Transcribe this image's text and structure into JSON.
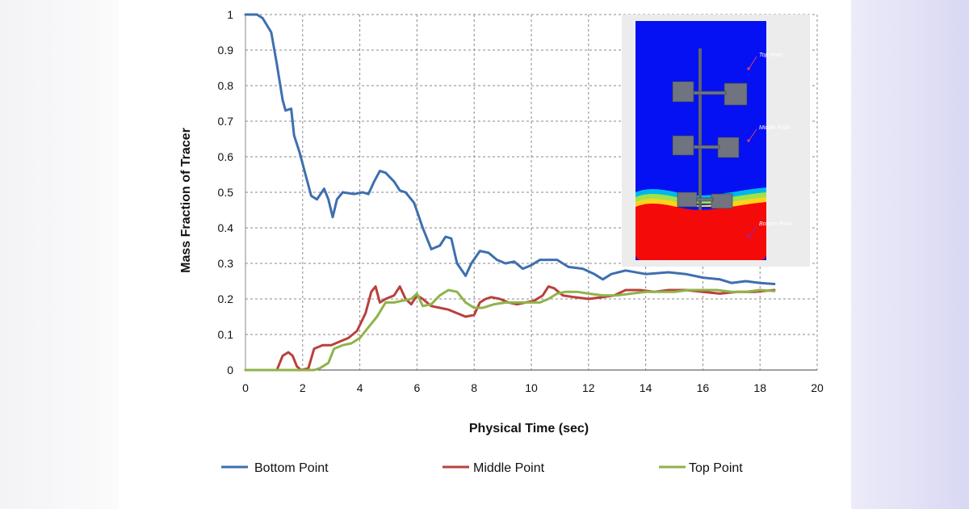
{
  "chart_data": {
    "type": "line",
    "title": "",
    "xlabel": "Physical Time (sec)",
    "ylabel": "Mass Fraction of Tracer",
    "xlim": [
      0,
      20
    ],
    "ylim": [
      0,
      1
    ],
    "x_ticks": [
      0,
      2,
      4,
      6,
      8,
      10,
      12,
      14,
      16,
      18,
      20
    ],
    "y_ticks": [
      0,
      0.1,
      0.2,
      0.3,
      0.4,
      0.5,
      0.6,
      0.7,
      0.8,
      0.9,
      1
    ],
    "grid": true,
    "legend_position": "bottom",
    "series": [
      {
        "name": "Bottom Point",
        "color": "#3e6faf",
        "points": [
          [
            0,
            1
          ],
          [
            0.4,
            1
          ],
          [
            0.6,
            0.99
          ],
          [
            0.9,
            0.95
          ],
          [
            1.1,
            0.86
          ],
          [
            1.3,
            0.76
          ],
          [
            1.4,
            0.73
          ],
          [
            1.6,
            0.735
          ],
          [
            1.7,
            0.66
          ],
          [
            1.9,
            0.61
          ],
          [
            2.1,
            0.55
          ],
          [
            2.3,
            0.49
          ],
          [
            2.5,
            0.48
          ],
          [
            2.75,
            0.51
          ],
          [
            2.9,
            0.48
          ],
          [
            3.05,
            0.43
          ],
          [
            3.2,
            0.48
          ],
          [
            3.4,
            0.5
          ],
          [
            3.8,
            0.495
          ],
          [
            4.1,
            0.5
          ],
          [
            4.3,
            0.495
          ],
          [
            4.5,
            0.53
          ],
          [
            4.7,
            0.56
          ],
          [
            4.9,
            0.555
          ],
          [
            5.2,
            0.53
          ],
          [
            5.4,
            0.505
          ],
          [
            5.6,
            0.5
          ],
          [
            5.9,
            0.47
          ],
          [
            6.2,
            0.4
          ],
          [
            6.5,
            0.34
          ],
          [
            6.8,
            0.35
          ],
          [
            7.0,
            0.375
          ],
          [
            7.2,
            0.37
          ],
          [
            7.4,
            0.3
          ],
          [
            7.7,
            0.265
          ],
          [
            7.9,
            0.3
          ],
          [
            8.2,
            0.335
          ],
          [
            8.5,
            0.33
          ],
          [
            8.8,
            0.31
          ],
          [
            9.1,
            0.3
          ],
          [
            9.4,
            0.305
          ],
          [
            9.7,
            0.285
          ],
          [
            10.0,
            0.295
          ],
          [
            10.3,
            0.31
          ],
          [
            10.9,
            0.31
          ],
          [
            11.3,
            0.29
          ],
          [
            11.8,
            0.285
          ],
          [
            12.2,
            0.27
          ],
          [
            12.5,
            0.255
          ],
          [
            12.8,
            0.27
          ],
          [
            13.3,
            0.28
          ],
          [
            14.0,
            0.27
          ],
          [
            14.8,
            0.275
          ],
          [
            15.4,
            0.27
          ],
          [
            16.0,
            0.26
          ],
          [
            16.6,
            0.255
          ],
          [
            17.0,
            0.245
          ],
          [
            17.5,
            0.25
          ],
          [
            18.0,
            0.245
          ],
          [
            18.5,
            0.242
          ]
        ]
      },
      {
        "name": "Middle Point",
        "color": "#b9403c",
        "points": [
          [
            0,
            0
          ],
          [
            1.1,
            0
          ],
          [
            1.3,
            0.04
          ],
          [
            1.5,
            0.05
          ],
          [
            1.65,
            0.04
          ],
          [
            1.8,
            0.01
          ],
          [
            1.95,
            0
          ],
          [
            2.2,
            0.005
          ],
          [
            2.4,
            0.06
          ],
          [
            2.7,
            0.07
          ],
          [
            3.0,
            0.07
          ],
          [
            3.3,
            0.08
          ],
          [
            3.6,
            0.09
          ],
          [
            3.9,
            0.11
          ],
          [
            4.2,
            0.16
          ],
          [
            4.4,
            0.22
          ],
          [
            4.55,
            0.235
          ],
          [
            4.7,
            0.19
          ],
          [
            4.9,
            0.2
          ],
          [
            5.2,
            0.21
          ],
          [
            5.4,
            0.235
          ],
          [
            5.6,
            0.2
          ],
          [
            5.8,
            0.185
          ],
          [
            6.0,
            0.21
          ],
          [
            6.2,
            0.2
          ],
          [
            6.5,
            0.18
          ],
          [
            6.8,
            0.175
          ],
          [
            7.1,
            0.17
          ],
          [
            7.4,
            0.16
          ],
          [
            7.7,
            0.15
          ],
          [
            8.0,
            0.155
          ],
          [
            8.2,
            0.19
          ],
          [
            8.4,
            0.2
          ],
          [
            8.6,
            0.205
          ],
          [
            8.9,
            0.2
          ],
          [
            9.2,
            0.19
          ],
          [
            9.5,
            0.185
          ],
          [
            9.8,
            0.19
          ],
          [
            10.1,
            0.195
          ],
          [
            10.4,
            0.21
          ],
          [
            10.6,
            0.235
          ],
          [
            10.8,
            0.23
          ],
          [
            11.1,
            0.21
          ],
          [
            11.5,
            0.205
          ],
          [
            12.0,
            0.2
          ],
          [
            12.5,
            0.205
          ],
          [
            12.9,
            0.21
          ],
          [
            13.3,
            0.225
          ],
          [
            13.8,
            0.225
          ],
          [
            14.3,
            0.22
          ],
          [
            14.8,
            0.225
          ],
          [
            15.4,
            0.225
          ],
          [
            16.0,
            0.22
          ],
          [
            16.6,
            0.215
          ],
          [
            17.2,
            0.22
          ],
          [
            17.8,
            0.22
          ],
          [
            18.5,
            0.225
          ]
        ]
      },
      {
        "name": "Top Point",
        "color": "#8fb34a",
        "points": [
          [
            0,
            0
          ],
          [
            2.4,
            0
          ],
          [
            2.6,
            0.005
          ],
          [
            2.9,
            0.02
          ],
          [
            3.1,
            0.06
          ],
          [
            3.4,
            0.07
          ],
          [
            3.7,
            0.075
          ],
          [
            4.0,
            0.09
          ],
          [
            4.3,
            0.12
          ],
          [
            4.6,
            0.15
          ],
          [
            4.9,
            0.19
          ],
          [
            5.2,
            0.19
          ],
          [
            5.5,
            0.195
          ],
          [
            5.8,
            0.2
          ],
          [
            6.0,
            0.215
          ],
          [
            6.2,
            0.18
          ],
          [
            6.5,
            0.185
          ],
          [
            6.8,
            0.21
          ],
          [
            7.1,
            0.225
          ],
          [
            7.4,
            0.22
          ],
          [
            7.7,
            0.19
          ],
          [
            8.0,
            0.175
          ],
          [
            8.3,
            0.175
          ],
          [
            8.7,
            0.185
          ],
          [
            9.1,
            0.19
          ],
          [
            9.5,
            0.19
          ],
          [
            9.9,
            0.19
          ],
          [
            10.3,
            0.19
          ],
          [
            10.6,
            0.2
          ],
          [
            10.9,
            0.215
          ],
          [
            11.2,
            0.22
          ],
          [
            11.6,
            0.22
          ],
          [
            12.0,
            0.215
          ],
          [
            12.5,
            0.21
          ],
          [
            13.0,
            0.21
          ],
          [
            13.5,
            0.215
          ],
          [
            14.0,
            0.22
          ],
          [
            14.5,
            0.22
          ],
          [
            15.0,
            0.22
          ],
          [
            15.5,
            0.225
          ],
          [
            16.0,
            0.225
          ],
          [
            16.5,
            0.225
          ],
          [
            17.0,
            0.22
          ],
          [
            17.5,
            0.22
          ],
          [
            18.0,
            0.225
          ],
          [
            18.5,
            0.222
          ]
        ]
      }
    ],
    "inset": {
      "labels": [
        "Top Point",
        "Middle Point",
        "Bottom Point"
      ]
    }
  }
}
